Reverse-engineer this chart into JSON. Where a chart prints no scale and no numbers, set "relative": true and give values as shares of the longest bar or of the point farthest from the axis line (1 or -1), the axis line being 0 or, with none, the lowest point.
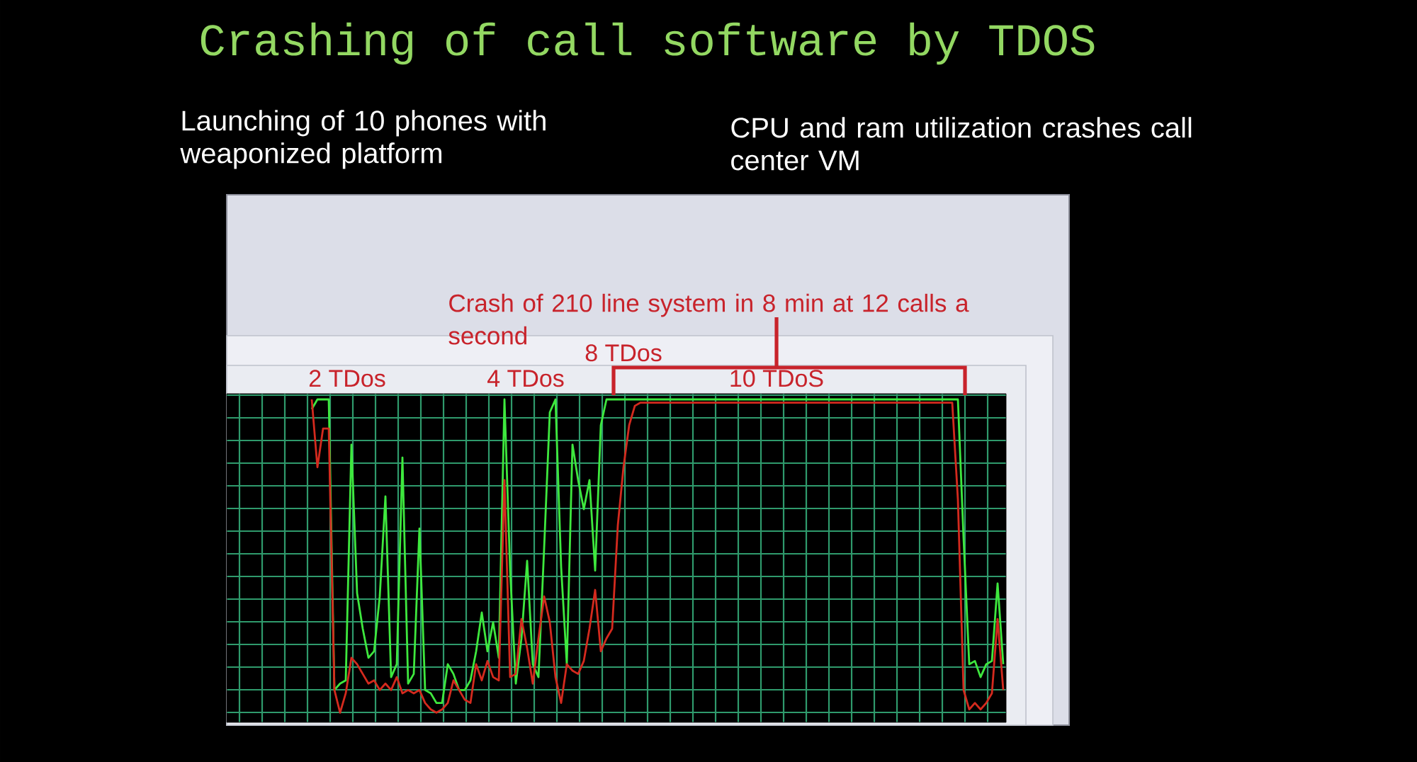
{
  "chart_data": {
    "type": "line",
    "title": "Crashing of call software by TDOS",
    "annotations": [
      "Launching of 10 phones with weaponized platform",
      "CPU and ram utilization crashes call center VM",
      "Crash of 210 line system in 8 min at 12 calls a second",
      "2 TDos",
      "4 TDos",
      "8 TDos",
      "10 TDoS"
    ],
    "categories": [
      null,
      null,
      null,
      null,
      null,
      null,
      null,
      null,
      null,
      null,
      null,
      null,
      null,
      null,
      null,
      null,
      null,
      null,
      null,
      null,
      null,
      null,
      null,
      null,
      null,
      null,
      null,
      null,
      null,
      null,
      null,
      null,
      null,
      null,
      null,
      null,
      null,
      null,
      null,
      null,
      null,
      null,
      null,
      null,
      null,
      null,
      null,
      null,
      null,
      null,
      null,
      null,
      null,
      null,
      null,
      null,
      null,
      null,
      null,
      null,
      null,
      null,
      null,
      null,
      null,
      null,
      null,
      null,
      null,
      null,
      null,
      null,
      null,
      null,
      null,
      null,
      null,
      null,
      null,
      null,
      null,
      null,
      null,
      null,
      null,
      null,
      null,
      null,
      null,
      null,
      null,
      null,
      null,
      null,
      null,
      null,
      null,
      null,
      null,
      null,
      null,
      null,
      null,
      null,
      null,
      null,
      null,
      null,
      null,
      null,
      null,
      null,
      null,
      null,
      null,
      null,
      null,
      null,
      null,
      null,
      null,
      null,
      null,
      null,
      null,
      null,
      null,
      null,
      null,
      null,
      null,
      null,
      null,
      null,
      null,
      null,
      null,
      null
    ],
    "relative": true,
    "grid": true,
    "series": [
      {
        "color": "#3ee83e",
        "values": [
          null,
          null,
          null,
          null,
          null,
          null,
          null,
          null,
          null,
          null,
          null,
          null,
          null,
          null,
          null,
          0.97,
          1,
          1,
          1,
          0.1,
          0.12,
          0.13,
          0.86,
          0.4,
          0.29,
          0.2,
          0.22,
          0.39,
          0.7,
          0.14,
          0.18,
          0.82,
          0.12,
          0.15,
          0.6,
          0.1,
          0.09,
          0.06,
          0.06,
          0.18,
          0.15,
          0.1,
          0.1,
          0.13,
          0.22,
          0.34,
          0.22,
          0.31,
          0.2,
          1,
          0.47,
          0.12,
          0.26,
          0.5,
          0.18,
          0.14,
          0.54,
          0.96,
          1,
          0.48,
          0.18,
          0.86,
          0.75,
          0.66,
          0.75,
          0.47,
          0.92,
          1,
          1,
          1,
          1,
          1,
          1,
          1,
          1,
          1,
          1,
          1,
          1,
          1,
          1,
          1,
          1,
          1,
          1,
          1,
          1,
          1,
          1,
          1,
          1,
          1,
          1,
          1,
          1,
          1,
          1,
          1,
          1,
          1,
          1,
          1,
          1,
          1,
          1,
          1,
          1,
          1,
          1,
          1,
          1,
          1,
          1,
          1,
          1,
          1,
          1,
          1,
          1,
          1,
          1,
          1,
          1,
          1,
          1,
          1,
          1,
          1,
          1,
          1,
          0.57,
          0.18,
          0.19,
          0.14,
          0.18,
          0.19,
          0.43,
          0.18
        ]
      },
      {
        "color": "#d42a1e",
        "values": [
          null,
          null,
          null,
          null,
          null,
          null,
          null,
          null,
          null,
          null,
          null,
          null,
          null,
          null,
          null,
          1,
          0.79,
          0.91,
          0.91,
          0.1,
          0.03,
          0.09,
          0.2,
          0.18,
          0.15,
          0.12,
          0.13,
          0.1,
          0.12,
          0.1,
          0.14,
          0.09,
          0.1,
          0.09,
          0.1,
          0.06,
          0.04,
          0.03,
          0.04,
          0.06,
          0.13,
          0.1,
          0.07,
          0.06,
          0.18,
          0.13,
          0.19,
          0.14,
          0.13,
          0.75,
          0.14,
          0.15,
          0.32,
          0.23,
          0.12,
          0.26,
          0.39,
          0.31,
          0.14,
          0.06,
          0.18,
          0.16,
          0.15,
          0.19,
          0.29,
          0.41,
          0.22,
          0.26,
          0.29,
          0.61,
          0.79,
          0.92,
          0.98,
          0.99,
          0.99,
          0.99,
          0.99,
          0.99,
          0.99,
          0.99,
          0.99,
          0.99,
          0.99,
          0.99,
          0.99,
          0.99,
          0.99,
          0.99,
          0.99,
          0.99,
          0.99,
          0.99,
          0.99,
          0.99,
          0.99,
          0.99,
          0.99,
          0.99,
          0.99,
          0.99,
          0.99,
          0.99,
          0.99,
          0.99,
          0.99,
          0.99,
          0.99,
          0.99,
          0.99,
          0.99,
          0.99,
          0.99,
          0.99,
          0.99,
          0.99,
          0.99,
          0.99,
          0.99,
          0.99,
          0.99,
          0.99,
          0.99,
          0.99,
          0.99,
          0.99,
          0.99,
          0.99,
          0.99,
          0.99,
          0.69,
          0.1,
          0.04,
          0.06,
          0.04,
          0.06,
          0.09,
          0.32,
          0.1
        ]
      }
    ]
  }
}
